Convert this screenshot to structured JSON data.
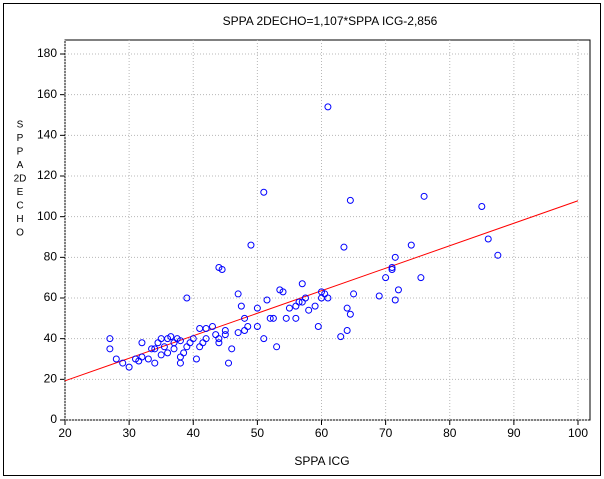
{
  "chart_data": {
    "type": "scatter",
    "title": "SPPA 2DECHO=1,107*SPPA ICG-2,856",
    "x_label": "SPPA ICG",
    "y_label": [
      "S",
      "P",
      "P",
      "A",
      "2D",
      "E",
      "C",
      "H",
      "O"
    ],
    "xlim": [
      20,
      100
    ],
    "ylim": [
      0,
      180
    ],
    "xticks": [
      20,
      30,
      40,
      50,
      60,
      70,
      80,
      90,
      100
    ],
    "yticks": [
      0,
      20,
      40,
      60,
      80,
      100,
      120,
      140,
      160,
      180
    ],
    "grid": true,
    "color": "#0000ff",
    "fit": {
      "slope": 1.107,
      "intercept": -2.856,
      "color": "#ff0000"
    },
    "x": [
      27,
      27,
      28,
      29,
      30,
      31,
      31.5,
      32,
      32,
      33,
      33.5,
      34,
      34,
      34.5,
      35,
      35,
      35.5,
      36,
      36,
      36.5,
      37,
      37,
      37.5,
      38,
      38,
      38.5,
      38,
      39,
      39,
      39.5,
      40,
      40.5,
      41,
      41,
      41.5,
      42,
      42,
      43,
      43.5,
      44,
      44,
      44,
      44.5,
      45,
      45,
      45.5,
      46,
      47,
      47,
      47.5,
      48,
      48,
      48.5,
      49,
      50,
      50,
      51,
      51,
      51.5,
      52,
      52.5,
      53,
      53.5,
      54,
      54.5,
      55,
      56,
      56,
      56.5,
      57,
      57,
      57.5,
      58,
      59,
      59.5,
      60,
      60,
      60.5,
      61,
      61,
      63,
      63.5,
      64,
      64,
      64.5,
      65,
      64.5,
      69,
      70,
      71,
      71,
      71.5,
      71.5,
      72,
      74,
      75.5,
      76,
      85,
      86,
      87.5
    ],
    "values": [
      40,
      35,
      30,
      28,
      26,
      30,
      29,
      38,
      31,
      30,
      35,
      28,
      35,
      38,
      40,
      32,
      36,
      40,
      33,
      41,
      38,
      35,
      40,
      28,
      31,
      33,
      39,
      36,
      60,
      38,
      40,
      30,
      45,
      36,
      38,
      45,
      40,
      46,
      42,
      38,
      40,
      75,
      74,
      44,
      42,
      28,
      35,
      62,
      43,
      56,
      50,
      44,
      46,
      86,
      55,
      46,
      112,
      40,
      59,
      50,
      50,
      36,
      64,
      63,
      50,
      55,
      56,
      50,
      58,
      67,
      58,
      60,
      54,
      56,
      46,
      63,
      60,
      62,
      60,
      154,
      41,
      85,
      55,
      44,
      108,
      62,
      52,
      61,
      70,
      75,
      74,
      80,
      59,
      64,
      86,
      70,
      110,
      105,
      89,
      81
    ]
  }
}
